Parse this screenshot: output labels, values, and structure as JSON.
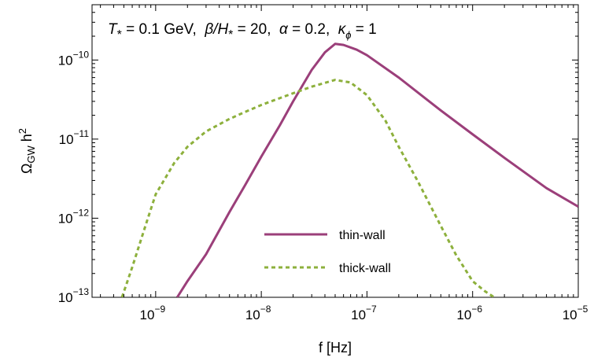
{
  "chart_data": {
    "type": "line",
    "title": "",
    "annotation": "T* = 0.1 GeV,  β/H* = 20,  α = 0.2,  κφ = 1",
    "annotation_parts": {
      "t_sym": "T",
      "t_sub": "*",
      "t_val": " = 0.1 GeV,  ",
      "beta_sym": "β/H",
      "beta_sub": "*",
      "beta_val": " = 20,  ",
      "alpha_sym": "α",
      "alpha_val": " = 0.2,  ",
      "kappa_sym": "κ",
      "kappa_sub": "ϕ",
      "kappa_val": " = 1"
    },
    "xlabel": "f [Hz]",
    "ylabel_main": "Ω",
    "ylabel_sub": "GW",
    "ylabel_tail": " h",
    "ylabel_sup": "2",
    "xscale": "log",
    "yscale": "log",
    "xlim": [
      2.5e-10,
      1e-05
    ],
    "ylim": [
      1e-13,
      5e-10
    ],
    "x_ticks": [
      {
        "value": 1e-09,
        "base": "10",
        "exp": "−9"
      },
      {
        "value": 1e-08,
        "base": "10",
        "exp": "−8"
      },
      {
        "value": 1e-07,
        "base": "10",
        "exp": "−7"
      },
      {
        "value": 1e-06,
        "base": "10",
        "exp": "−6"
      },
      {
        "value": 1e-05,
        "base": "10",
        "exp": "−5"
      }
    ],
    "y_ticks": [
      {
        "value": 1e-13,
        "base": "10",
        "exp": "−13"
      },
      {
        "value": 1e-12,
        "base": "10",
        "exp": "−12"
      },
      {
        "value": 1e-11,
        "base": "10",
        "exp": "−11"
      },
      {
        "value": 1e-10,
        "base": "10",
        "exp": "−10"
      }
    ],
    "grid": false,
    "legend_position": "bottom-center",
    "series": [
      {
        "name": "thin-wall",
        "color": "#9b3f7a",
        "style": "solid",
        "x": [
          1.6e-09,
          2e-09,
          3e-09,
          5e-09,
          7e-09,
          1e-08,
          1.5e-08,
          2e-08,
          3e-08,
          4e-08,
          5e-08,
          6e-08,
          8e-08,
          1e-07,
          2e-07,
          5e-07,
          1e-06,
          2e-06,
          5e-06,
          1e-05
        ],
        "y": [
          1e-13,
          1.6e-13,
          3.5e-13,
          1.2e-12,
          2.6e-12,
          6e-12,
          1.5e-11,
          3e-11,
          7.5e-11,
          1.25e-10,
          1.6e-10,
          1.55e-10,
          1.35e-10,
          1.15e-10,
          6e-11,
          2.3e-11,
          1.15e-11,
          5.8e-12,
          2.4e-12,
          1.4e-12
        ]
      },
      {
        "name": "thick-wall",
        "color": "#8db03c",
        "style": "dashed",
        "x": [
          4.8e-10,
          6e-10,
          8e-10,
          1e-09,
          1.5e-09,
          2e-09,
          3e-09,
          5e-09,
          7e-09,
          1e-08,
          1.5e-08,
          2e-08,
          3e-08,
          5e-08,
          7e-08,
          1e-07,
          1.5e-07,
          2e-07,
          3e-07,
          5e-07,
          7e-07,
          1e-06,
          1.3e-06,
          1.6e-06
        ],
        "y": [
          1e-13,
          2.4e-13,
          8e-13,
          2e-12,
          5e-12,
          8e-12,
          1.25e-11,
          1.8e-11,
          2.2e-11,
          2.7e-11,
          3.3e-11,
          3.8e-11,
          4.6e-11,
          5.6e-11,
          5.2e-11,
          3.6e-11,
          1.7e-11,
          8e-12,
          3e-12,
          8e-13,
          3.4e-13,
          1.6e-13,
          1.2e-13,
          1e-13
        ]
      }
    ]
  }
}
